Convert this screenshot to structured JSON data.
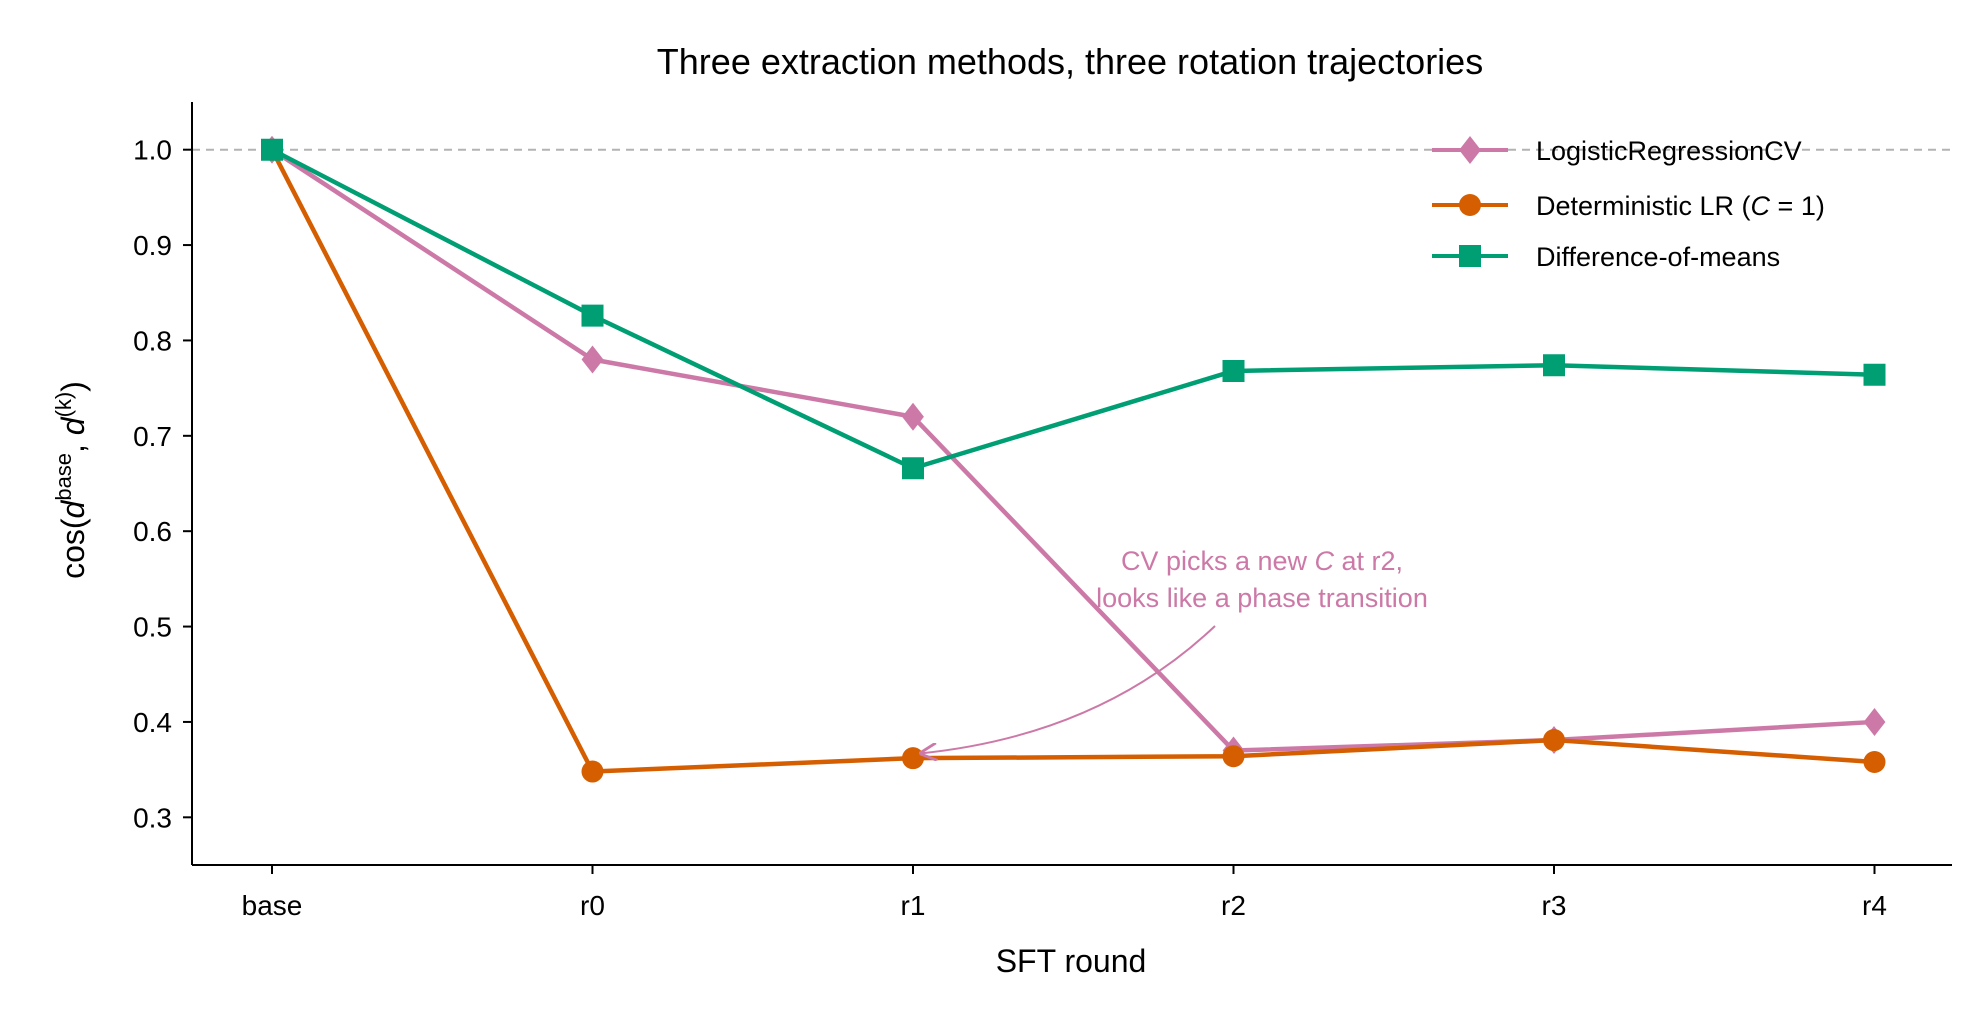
{
  "chart_data": {
    "type": "line",
    "title": "Three extraction methods, three rotation trajectories",
    "xlabel": "SFT round",
    "ylabel": "cos(d^base, d^(k))",
    "ylabel_parts": {
      "pre": "cos(",
      "d1": "d",
      "sup1": "base",
      "mid": ", ",
      "d2": "d",
      "sup2": "(k)",
      "post": ")"
    },
    "categories": [
      "base",
      "r0",
      "r1",
      "r2",
      "r3",
      "r4"
    ],
    "ylim": [
      0.25,
      1.05
    ],
    "yticks": [
      0.3,
      0.4,
      0.5,
      0.6,
      0.7,
      0.8,
      0.9,
      1.0
    ],
    "ytick_labels": [
      "0.3",
      "0.4",
      "0.5",
      "0.6",
      "0.7",
      "0.8",
      "0.9",
      "1.0"
    ],
    "reference_line": 1.0,
    "grid": false,
    "legend_position": "top-right",
    "series": [
      {
        "name": "LogisticRegressionCV",
        "color": "#cc79a7",
        "marker": "diamond",
        "values": [
          1.0,
          0.78,
          0.72,
          0.37,
          0.381,
          0.4
        ]
      },
      {
        "name": "Deterministic LR (C = 1)",
        "legend_parts": {
          "pre": "Deterministic LR (",
          "italic": "C",
          "post": " = 1)"
        },
        "color": "#d55e00",
        "marker": "circle",
        "values": [
          1.0,
          0.348,
          0.362,
          0.364,
          0.381,
          0.358
        ]
      },
      {
        "name": "Difference-of-means",
        "color": "#009e73",
        "marker": "square",
        "values": [
          1.0,
          0.826,
          0.666,
          0.768,
          0.774,
          0.764
        ]
      }
    ],
    "annotation": {
      "line1_parts": {
        "pre": "CV picks a new ",
        "italic": "C",
        "post": " at r2,"
      },
      "line2": "looks like a phase transition",
      "color": "#cc79a7",
      "target_category": "r1",
      "target_value": 0.365
    }
  }
}
